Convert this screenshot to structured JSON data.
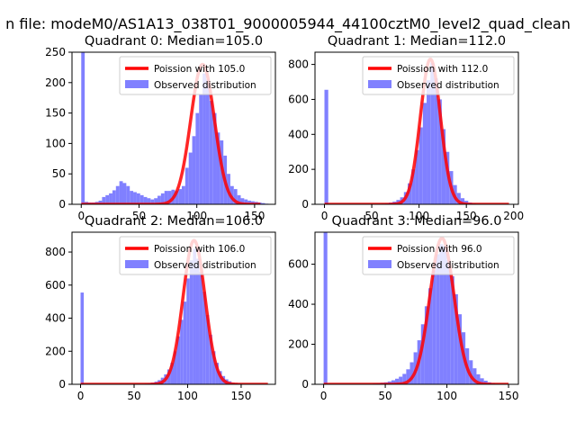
{
  "figure": {
    "suptitle": "n file: modeM0/AS1A13_038T01_9000005944_44100cztM0_level2_quad_clean"
  },
  "colors": {
    "hist": "#8080ff",
    "curve": "#ff0000",
    "curve_peak": "#ff7f7f"
  },
  "chart_data": [
    {
      "type": "bar",
      "title": "Quadrant 0: Median=105.0",
      "xlim": [
        -8,
        168
      ],
      "ylim": [
        0,
        250
      ],
      "xticks": [
        0,
        50,
        100,
        150
      ],
      "yticks": [
        0,
        50,
        100,
        150,
        200,
        250
      ],
      "xlabel": "",
      "ylabel": "",
      "legend": {
        "placement": "top-right",
        "entries": [
          "Poission with 105.0",
          "Observed distribution"
        ]
      },
      "bins": [
        [
          0,
          3,
          250
        ],
        [
          3,
          6,
          4
        ],
        [
          6,
          9,
          3
        ],
        [
          9,
          12,
          3
        ],
        [
          12,
          15,
          4
        ],
        [
          15,
          18,
          6
        ],
        [
          18,
          21,
          12
        ],
        [
          21,
          24,
          15
        ],
        [
          24,
          27,
          18
        ],
        [
          27,
          30,
          23
        ],
        [
          30,
          33,
          30
        ],
        [
          33,
          36,
          38
        ],
        [
          36,
          39,
          35
        ],
        [
          39,
          42,
          30
        ],
        [
          42,
          45,
          22
        ],
        [
          45,
          48,
          20
        ],
        [
          48,
          51,
          18
        ],
        [
          51,
          54,
          15
        ],
        [
          54,
          57,
          12
        ],
        [
          57,
          60,
          10
        ],
        [
          60,
          63,
          8
        ],
        [
          63,
          66,
          10
        ],
        [
          66,
          69,
          14
        ],
        [
          69,
          72,
          18
        ],
        [
          72,
          75,
          22
        ],
        [
          75,
          78,
          22
        ],
        [
          78,
          81,
          24
        ],
        [
          81,
          84,
          22
        ],
        [
          84,
          87,
          25
        ],
        [
          87,
          90,
          30
        ],
        [
          90,
          93,
          60
        ],
        [
          93,
          96,
          85
        ],
        [
          96,
          99,
          112
        ],
        [
          99,
          102,
          150
        ],
        [
          102,
          105,
          180
        ],
        [
          105,
          108,
          215
        ],
        [
          108,
          111,
          205
        ],
        [
          111,
          114,
          170
        ],
        [
          114,
          117,
          150
        ],
        [
          117,
          120,
          118
        ],
        [
          120,
          123,
          105
        ],
        [
          123,
          126,
          80
        ],
        [
          126,
          129,
          50
        ],
        [
          129,
          132,
          30
        ],
        [
          132,
          135,
          25
        ],
        [
          135,
          138,
          15
        ],
        [
          138,
          141,
          10
        ],
        [
          141,
          144,
          8
        ],
        [
          144,
          147,
          6
        ],
        [
          147,
          150,
          5
        ],
        [
          150,
          153,
          4
        ],
        [
          153,
          156,
          3
        ],
        [
          156,
          159,
          2
        ],
        [
          159,
          162,
          1
        ]
      ],
      "poisson": {
        "name": "Poission with 105.0",
        "lambda": 105.0,
        "peak": 230,
        "x_range": [
          0,
          155
        ]
      }
    },
    {
      "type": "bar",
      "title": "Quadrant 1: Median=112.0",
      "xlim": [
        -10,
        205
      ],
      "ylim": [
        0,
        870
      ],
      "xticks": [
        0,
        50,
        100,
        150,
        200
      ],
      "yticks": [
        0,
        200,
        400,
        600,
        800
      ],
      "xlabel": "",
      "ylabel": "",
      "legend": {
        "placement": "top-right",
        "entries": [
          "Poission with 112.0",
          "Observed distribution"
        ]
      },
      "bins": [
        [
          0,
          4,
          655
        ],
        [
          60,
          64,
          4
        ],
        [
          64,
          68,
          6
        ],
        [
          68,
          72,
          10
        ],
        [
          72,
          76,
          15
        ],
        [
          76,
          80,
          25
        ],
        [
          80,
          84,
          40
        ],
        [
          84,
          88,
          70
        ],
        [
          88,
          92,
          120
        ],
        [
          92,
          96,
          200
        ],
        [
          96,
          100,
          310
        ],
        [
          100,
          104,
          440
        ],
        [
          104,
          108,
          580
        ],
        [
          108,
          112,
          710
        ],
        [
          112,
          116,
          810
        ],
        [
          116,
          120,
          720
        ],
        [
          120,
          124,
          600
        ],
        [
          124,
          128,
          430
        ],
        [
          128,
          132,
          300
        ],
        [
          132,
          136,
          190
        ],
        [
          136,
          140,
          110
        ],
        [
          140,
          144,
          65
        ],
        [
          144,
          148,
          35
        ],
        [
          148,
          152,
          20
        ],
        [
          152,
          156,
          10
        ],
        [
          156,
          160,
          5
        ],
        [
          160,
          164,
          3
        ]
      ],
      "poisson": {
        "name": "Poission with 112.0",
        "lambda": 112.0,
        "peak": 830,
        "x_range": [
          0,
          195
        ]
      }
    },
    {
      "type": "bar",
      "title": "Quadrant 2: Median=106.0",
      "xlim": [
        -8,
        182
      ],
      "ylim": [
        0,
        920
      ],
      "xticks": [
        0,
        50,
        100,
        150
      ],
      "yticks": [
        0,
        200,
        400,
        600,
        800
      ],
      "xlabel": "",
      "ylabel": "",
      "legend": {
        "placement": "top-right",
        "entries": [
          "Poission with 106.0",
          "Observed distribution"
        ]
      },
      "bins": [
        [
          0,
          3,
          555
        ],
        [
          60,
          63,
          4
        ],
        [
          63,
          66,
          6
        ],
        [
          66,
          69,
          10
        ],
        [
          69,
          72,
          16
        ],
        [
          72,
          75,
          25
        ],
        [
          75,
          78,
          40
        ],
        [
          78,
          81,
          60
        ],
        [
          81,
          84,
          90
        ],
        [
          84,
          87,
          130
        ],
        [
          87,
          90,
          200
        ],
        [
          90,
          93,
          290
        ],
        [
          93,
          96,
          390
        ],
        [
          96,
          99,
          500
        ],
        [
          99,
          102,
          640
        ],
        [
          102,
          105,
          750
        ],
        [
          105,
          108,
          820
        ],
        [
          108,
          111,
          760
        ],
        [
          111,
          114,
          680
        ],
        [
          114,
          117,
          560
        ],
        [
          117,
          120,
          420
        ],
        [
          120,
          123,
          300
        ],
        [
          123,
          126,
          200
        ],
        [
          126,
          129,
          130
        ],
        [
          129,
          132,
          80
        ],
        [
          132,
          135,
          50
        ],
        [
          135,
          138,
          30
        ],
        [
          138,
          141,
          18
        ],
        [
          141,
          144,
          10
        ],
        [
          144,
          147,
          6
        ],
        [
          147,
          150,
          4
        ]
      ],
      "poisson": {
        "name": "Poission with 106.0",
        "lambda": 106.0,
        "peak": 870,
        "x_range": [
          0,
          175
        ]
      }
    },
    {
      "type": "bar",
      "title": "Quadrant 3: Median=96.0",
      "xlim": [
        -7,
        158
      ],
      "ylim": [
        0,
        760
      ],
      "xticks": [
        0,
        50,
        100,
        150
      ],
      "yticks": [
        0,
        200,
        400,
        600
      ],
      "xlabel": "",
      "ylabel": "",
      "legend": {
        "placement": "top-right",
        "entries": [
          "Poission with 96.0",
          "Observed distribution"
        ]
      },
      "bins": [
        [
          0,
          3,
          760
        ],
        [
          40,
          43,
          4
        ],
        [
          43,
          46,
          5
        ],
        [
          46,
          49,
          8
        ],
        [
          49,
          52,
          10
        ],
        [
          52,
          55,
          14
        ],
        [
          55,
          58,
          20
        ],
        [
          58,
          61,
          28
        ],
        [
          61,
          64,
          38
        ],
        [
          64,
          67,
          52
        ],
        [
          67,
          70,
          75
        ],
        [
          70,
          73,
          110
        ],
        [
          73,
          76,
          160
        ],
        [
          76,
          79,
          220
        ],
        [
          79,
          82,
          300
        ],
        [
          82,
          85,
          390
        ],
        [
          85,
          88,
          480
        ],
        [
          88,
          91,
          570
        ],
        [
          91,
          94,
          650
        ],
        [
          94,
          97,
          700
        ],
        [
          97,
          100,
          690
        ],
        [
          100,
          103,
          620
        ],
        [
          103,
          106,
          540
        ],
        [
          106,
          109,
          450
        ],
        [
          109,
          112,
          350
        ],
        [
          112,
          115,
          260
        ],
        [
          115,
          118,
          180
        ],
        [
          118,
          121,
          120
        ],
        [
          121,
          124,
          80
        ],
        [
          124,
          127,
          50
        ],
        [
          127,
          130,
          30
        ],
        [
          130,
          133,
          18
        ],
        [
          133,
          136,
          10
        ],
        [
          136,
          139,
          6
        ],
        [
          139,
          142,
          3
        ]
      ],
      "poisson": {
        "name": "Poission with 96.0",
        "lambda": 96.0,
        "peak": 730,
        "x_range": [
          0,
          150
        ]
      }
    }
  ]
}
